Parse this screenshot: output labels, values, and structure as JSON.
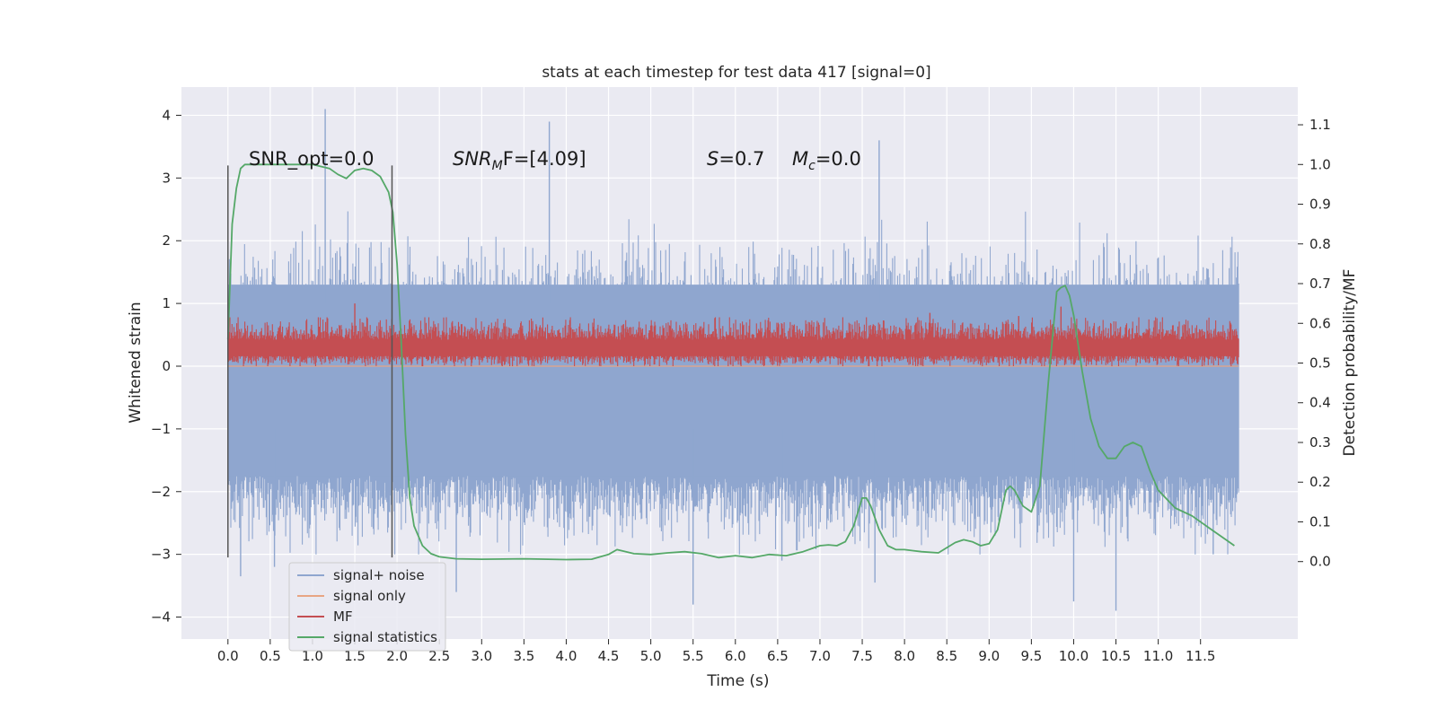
{
  "chart_data": {
    "type": "line",
    "title": "stats at each timestep for test data 417 [signal=0]",
    "xlabel": "Time (s)",
    "ylabel": "Whitened strain",
    "y2label": "Detection probability/MF",
    "xlim": [
      -0.55,
      12.65
    ],
    "ylim": [
      -4.35,
      4.45
    ],
    "y2lim": [
      -0.195,
      1.195
    ],
    "x_ticks": [
      0.0,
      0.5,
      1.0,
      1.5,
      2.0,
      2.5,
      3.0,
      3.5,
      4.0,
      4.5,
      5.0,
      5.5,
      6.0,
      6.5,
      7.0,
      7.5,
      8.0,
      8.5,
      9.0,
      9.5,
      10.0,
      10.5,
      11.0,
      11.5
    ],
    "x_tick_labels": [
      "0.0",
      "0.5",
      "1.0",
      "1.5",
      "2.0",
      "2.5",
      "3.0",
      "3.5",
      "4.0",
      "4.5",
      "5.0",
      "5.5",
      "6.0",
      "6.5",
      "7.0",
      "7.5",
      "8.0",
      "8.5",
      "9.0",
      "9.5",
      "10.0",
      "10.5",
      "11.0",
      "11.5"
    ],
    "y_ticks": [
      4,
      3,
      2,
      1,
      0,
      -1,
      -2,
      -3,
      -4
    ],
    "y_tick_labels": [
      "4",
      "3",
      "2",
      "1",
      "0",
      "−1",
      "−2",
      "−3",
      "−4"
    ],
    "y2_ticks": [
      1.1,
      1.0,
      0.9,
      0.8,
      0.7,
      0.6,
      0.5,
      0.4,
      0.3,
      0.2,
      0.1,
      0.0
    ],
    "y2_tick_labels": [
      "1.1",
      "1.0",
      "0.9",
      "0.8",
      "0.7",
      "0.6",
      "0.5",
      "0.4",
      "0.3",
      "0.2",
      "0.1",
      "0.0"
    ],
    "grid": true,
    "legend_placement": "lower-left",
    "annotations": {
      "snr_opt": "SNR_opt=0.0",
      "snr_mf_main": "SNR",
      "snr_mf_sub": "M",
      "snr_mf_rest": "F=[4.09]",
      "s_main": "S",
      "s_rest": "=0.7",
      "mc_main": "M",
      "mc_sub": "c",
      "mc_rest": "=0.0"
    },
    "markers": [
      {
        "name": "left-marker",
        "x": 0.0,
        "y_range": [
          -3.05,
          3.2
        ]
      },
      {
        "name": "right-marker",
        "x": 1.94,
        "y_range": [
          -3.05,
          3.2
        ]
      }
    ],
    "series": [
      {
        "name": "signal+ noise",
        "color": "#8fa6cf",
        "axis": "left",
        "style": "dense-noise",
        "x_range": [
          0.0,
          11.95
        ],
        "typical_envelope": [
          -1.9,
          2.0
        ],
        "peaks": [
          {
            "x": 1.15,
            "y": 4.1
          },
          {
            "x": 3.8,
            "y": 3.9
          },
          {
            "x": 7.7,
            "y": 3.6
          },
          {
            "x": 5.5,
            "y": -3.8
          },
          {
            "x": 10.0,
            "y": -3.75
          },
          {
            "x": 10.5,
            "y": -3.9
          },
          {
            "x": 2.7,
            "y": -3.6
          },
          {
            "x": 0.15,
            "y": -3.35
          },
          {
            "x": 0.55,
            "y": -3.2
          },
          {
            "x": 7.65,
            "y": -3.45
          },
          {
            "x": 6.55,
            "y": -3.1
          },
          {
            "x": 11.65,
            "y": -3.0
          }
        ]
      },
      {
        "name": "signal only",
        "color": "#e8a583",
        "axis": "left",
        "style": "line",
        "x": [
          0.0,
          11.95
        ],
        "y": [
          0.0,
          0.0
        ]
      },
      {
        "name": "MF",
        "color": "#c44e52",
        "axis": "left",
        "style": "dense-band",
        "x_range": [
          0.0,
          11.95
        ],
        "typical_envelope": [
          0.05,
          0.65
        ],
        "peaks": [
          {
            "x": 1.5,
            "y": 1.0
          },
          {
            "x": 9.85,
            "y": 0.95
          },
          {
            "x": 9.35,
            "y": 0.8
          },
          {
            "x": 8.3,
            "y": 0.85
          }
        ]
      },
      {
        "name": "signal statistics",
        "color": "#55a868",
        "axis": "right",
        "style": "line",
        "x": [
          0.0,
          0.05,
          0.1,
          0.15,
          0.2,
          0.3,
          0.5,
          0.8,
          1.0,
          1.1,
          1.2,
          1.3,
          1.4,
          1.5,
          1.6,
          1.7,
          1.8,
          1.9,
          1.95,
          2.0,
          2.05,
          2.1,
          2.15,
          2.2,
          2.3,
          2.4,
          2.5,
          2.7,
          3.0,
          3.5,
          4.0,
          4.3,
          4.5,
          4.6,
          4.8,
          5.0,
          5.2,
          5.4,
          5.6,
          5.8,
          6.0,
          6.2,
          6.4,
          6.6,
          6.8,
          7.0,
          7.1,
          7.2,
          7.3,
          7.4,
          7.5,
          7.55,
          7.6,
          7.7,
          7.8,
          7.9,
          8.0,
          8.2,
          8.4,
          8.6,
          8.7,
          8.8,
          8.9,
          9.0,
          9.1,
          9.2,
          9.25,
          9.3,
          9.4,
          9.5,
          9.6,
          9.7,
          9.8,
          9.85,
          9.9,
          9.95,
          10.0,
          10.1,
          10.2,
          10.3,
          10.4,
          10.5,
          10.6,
          10.7,
          10.8,
          10.9,
          11.0,
          11.2,
          11.4,
          11.6,
          11.8,
          11.9
        ],
        "y": [
          0.56,
          0.85,
          0.94,
          0.99,
          1.0,
          1.0,
          1.0,
          1.0,
          1.0,
          0.995,
          0.99,
          0.975,
          0.965,
          0.985,
          0.99,
          0.985,
          0.97,
          0.93,
          0.88,
          0.75,
          0.55,
          0.32,
          0.16,
          0.09,
          0.04,
          0.02,
          0.012,
          0.007,
          0.006,
          0.007,
          0.005,
          0.006,
          0.018,
          0.03,
          0.02,
          0.018,
          0.022,
          0.025,
          0.02,
          0.01,
          0.015,
          0.01,
          0.018,
          0.015,
          0.025,
          0.04,
          0.042,
          0.04,
          0.05,
          0.09,
          0.16,
          0.16,
          0.14,
          0.08,
          0.04,
          0.03,
          0.03,
          0.025,
          0.022,
          0.048,
          0.055,
          0.05,
          0.04,
          0.045,
          0.08,
          0.18,
          0.19,
          0.18,
          0.14,
          0.125,
          0.19,
          0.45,
          0.68,
          0.69,
          0.695,
          0.67,
          0.62,
          0.48,
          0.36,
          0.29,
          0.26,
          0.26,
          0.29,
          0.3,
          0.29,
          0.23,
          0.18,
          0.135,
          0.115,
          0.085,
          0.055,
          0.04
        ]
      }
    ]
  }
}
